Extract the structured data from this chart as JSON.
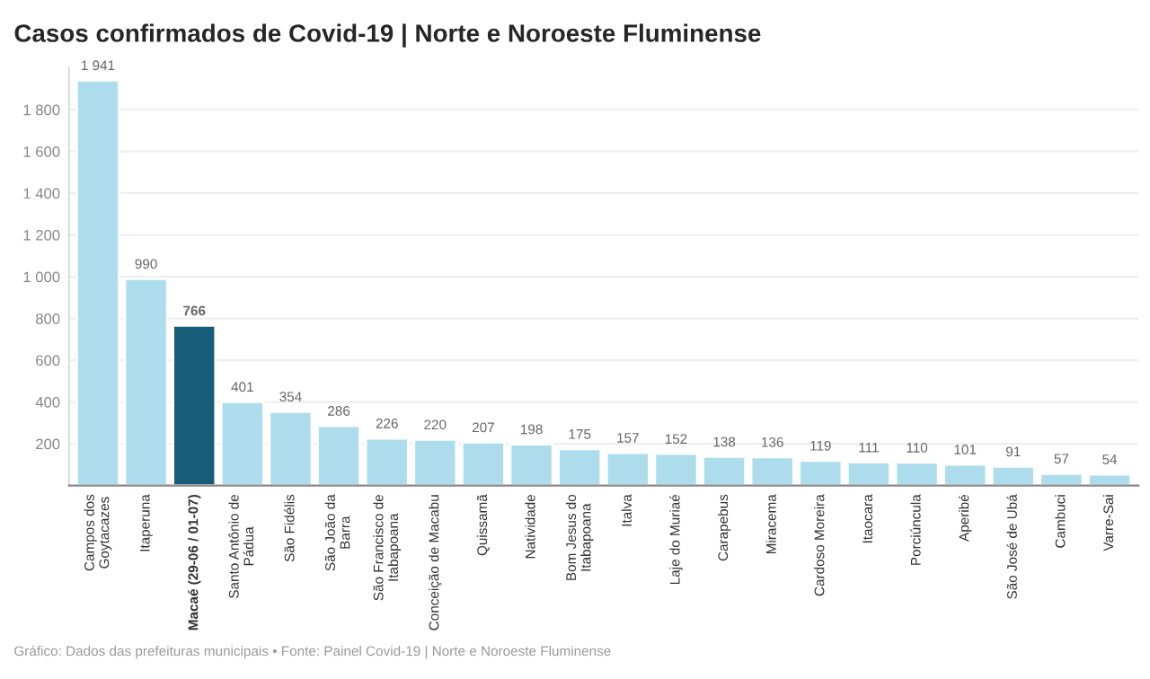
{
  "chart_data": {
    "type": "bar",
    "title": "Casos confirmados de Covid-19 | Norte e Noroeste Fluminense",
    "categories": [
      "Campos dos\nGoytacazes",
      "Itaperuna",
      "Macaé (29-06 / 01-07)",
      "Santo Antônio de\nPádua",
      "São Fidélis",
      "São João da\nBarra",
      "São Francisco de\nItabapoana",
      "Conceição de Macabu",
      "Quissamã",
      "Natividade",
      "Bom Jesus do\nItabapoana",
      "Italva",
      "Laje do Muriaé",
      "Carapebus",
      "Miracema",
      "Cardoso Moreira",
      "Itaocara",
      "Porciúncula",
      "Aperibé",
      "São José de Ubá",
      "Cambuci",
      "Varre-Sai"
    ],
    "values": [
      1941,
      990,
      766,
      401,
      354,
      286,
      226,
      220,
      207,
      198,
      175,
      157,
      152,
      138,
      136,
      119,
      111,
      110,
      101,
      91,
      57,
      54
    ],
    "value_labels": [
      "1 941",
      "990",
      "766",
      "401",
      "354",
      "286",
      "226",
      "220",
      "207",
      "198",
      "175",
      "157",
      "152",
      "138",
      "136",
      "119",
      "111",
      "110",
      "101",
      "91",
      "57",
      "54"
    ],
    "colors": [
      "#addcec",
      "#addcec",
      "#175c78",
      "#addcec",
      "#addcec",
      "#addcec",
      "#addcec",
      "#addcec",
      "#addcec",
      "#addcec",
      "#addcec",
      "#addcec",
      "#addcec",
      "#addcec",
      "#addcec",
      "#addcec",
      "#addcec",
      "#addcec",
      "#addcec",
      "#addcec",
      "#addcec",
      "#addcec"
    ],
    "ylim": [
      0,
      2000
    ],
    "yticks": [
      {
        "value": 200,
        "label": "200"
      },
      {
        "value": 400,
        "label": "400"
      },
      {
        "value": 600,
        "label": "600"
      },
      {
        "value": 800,
        "label": "800"
      },
      {
        "value": 1000,
        "label": "1 000"
      },
      {
        "value": 1200,
        "label": "1 200"
      },
      {
        "value": 1400,
        "label": "1 400"
      },
      {
        "value": 1600,
        "label": "1 600"
      },
      {
        "value": 1800,
        "label": "1 800"
      }
    ],
    "grid": "y",
    "annotations": [
      "Gráfico: Dados das prefeituras municipais • Fonte: Painel Covid-19 | Norte e Noroeste Fluminense"
    ]
  }
}
